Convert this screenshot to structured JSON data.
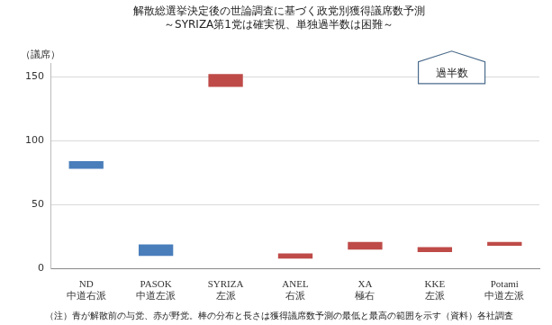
{
  "chart_data": {
    "type": "bar",
    "title": [
      "解散総選挙決定後の世論調査に基づく政党別獲得議席数予測",
      "～SYRIZA第1党は確実視、単独過半数は困難～"
    ],
    "y_label": "（議席）",
    "note": "（注）青が解散前の与党、赤が野党。棒の分布と長さは獲得議席数予測の最低と最高の範囲を示す（資料）各社調査",
    "annotations": [
      {
        "text": "過半数"
      }
    ],
    "categories": [
      [
        "ND",
        "中道右派"
      ],
      [
        "PASOK",
        "中道左派"
      ],
      [
        "SYRIZA",
        "左派"
      ],
      [
        "ANEL",
        "右派"
      ],
      [
        "XA",
        "極右"
      ],
      [
        "KKE",
        "左派"
      ],
      [
        "Potami",
        "中道左派"
      ]
    ],
    "values": [
      [
        78,
        84
      ],
      [
        10,
        19
      ],
      [
        142,
        152
      ],
      [
        8,
        12
      ],
      [
        15,
        21
      ],
      [
        13,
        17
      ],
      [
        18,
        21
      ]
    ],
    "colors": [
      "#4a7ebb",
      "#4a7ebb",
      "#be4b48",
      "#be4b48",
      "#be4b48",
      "#be4b48",
      "#be4b48"
    ],
    "ylim": [
      0,
      160
    ],
    "yticks": [
      0,
      50,
      100,
      150
    ],
    "grid": true
  }
}
